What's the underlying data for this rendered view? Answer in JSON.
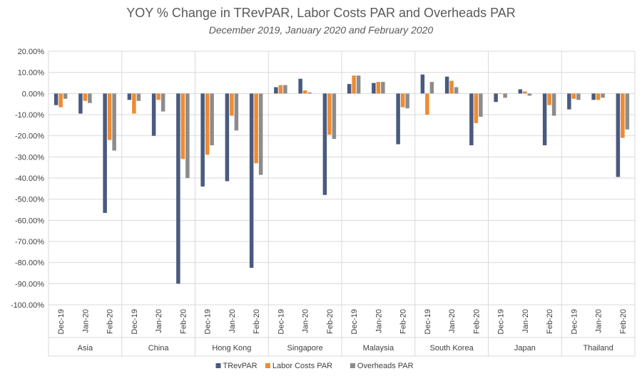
{
  "chart_data": {
    "type": "bar",
    "title": "YOY % Change in TRevPAR, Labor Costs PAR and Overheads PAR",
    "subtitle": "December 2019, January 2020 and February 2020",
    "xlabel": "",
    "ylabel": "",
    "ylim": [
      -100,
      20
    ],
    "yticks": [
      "20.00%",
      "10.00%",
      "0.00%",
      "-10.00%",
      "-20.00%",
      "-30.00%",
      "-40.00%",
      "-50.00%",
      "-60.00%",
      "-70.00%",
      "-80.00%",
      "-90.00%",
      "-100.00%"
    ],
    "ytick_values": [
      20,
      10,
      0,
      -10,
      -20,
      -30,
      -40,
      -50,
      -60,
      -70,
      -80,
      -90,
      -100
    ],
    "grid": true,
    "legend_position": "bottom",
    "months": [
      "Dec-19",
      "Jan-20",
      "Feb-20"
    ],
    "groups": [
      "Asia",
      "China",
      "Hong Kong",
      "Singapore",
      "Malaysia",
      "South Korea",
      "Japan",
      "Thailand"
    ],
    "series": [
      {
        "name": "TRevPAR",
        "color": "#4a5a7f",
        "values": [
          [
            -5.5,
            -9.5,
            -56.5
          ],
          [
            -3,
            -20,
            -90
          ],
          [
            -44,
            -41.5,
            -82.5
          ],
          [
            3,
            7,
            -48
          ],
          [
            4.5,
            5,
            -24
          ],
          [
            9,
            8,
            -24.5
          ],
          [
            -4,
            2,
            -24.5
          ],
          [
            -7.5,
            -3,
            -39.5
          ]
        ]
      },
      {
        "name": "Labor Costs PAR",
        "color": "#ed8b33",
        "values": [
          [
            -6.5,
            -3.5,
            -22
          ],
          [
            -9.5,
            -3,
            -31
          ],
          [
            -29,
            -10.5,
            -33
          ],
          [
            4,
            1.5,
            -19.5
          ],
          [
            8.5,
            5.5,
            -6.5
          ],
          [
            -10,
            6,
            -14
          ],
          [
            0,
            1,
            -5.5
          ],
          [
            -2.5,
            -3,
            -21
          ]
        ]
      },
      {
        "name": "Overheads PAR",
        "color": "#8c8c8c",
        "values": [
          [
            -2.5,
            -4.5,
            -27
          ],
          [
            -3.5,
            -8.5,
            -40
          ],
          [
            -24.5,
            -17.5,
            -38.5
          ],
          [
            4,
            0.5,
            -21.5
          ],
          [
            8.5,
            5.5,
            -7
          ],
          [
            5.5,
            3,
            -11
          ],
          [
            -2,
            -1,
            -10.5
          ],
          [
            -3,
            -2,
            -17
          ]
        ]
      }
    ]
  }
}
